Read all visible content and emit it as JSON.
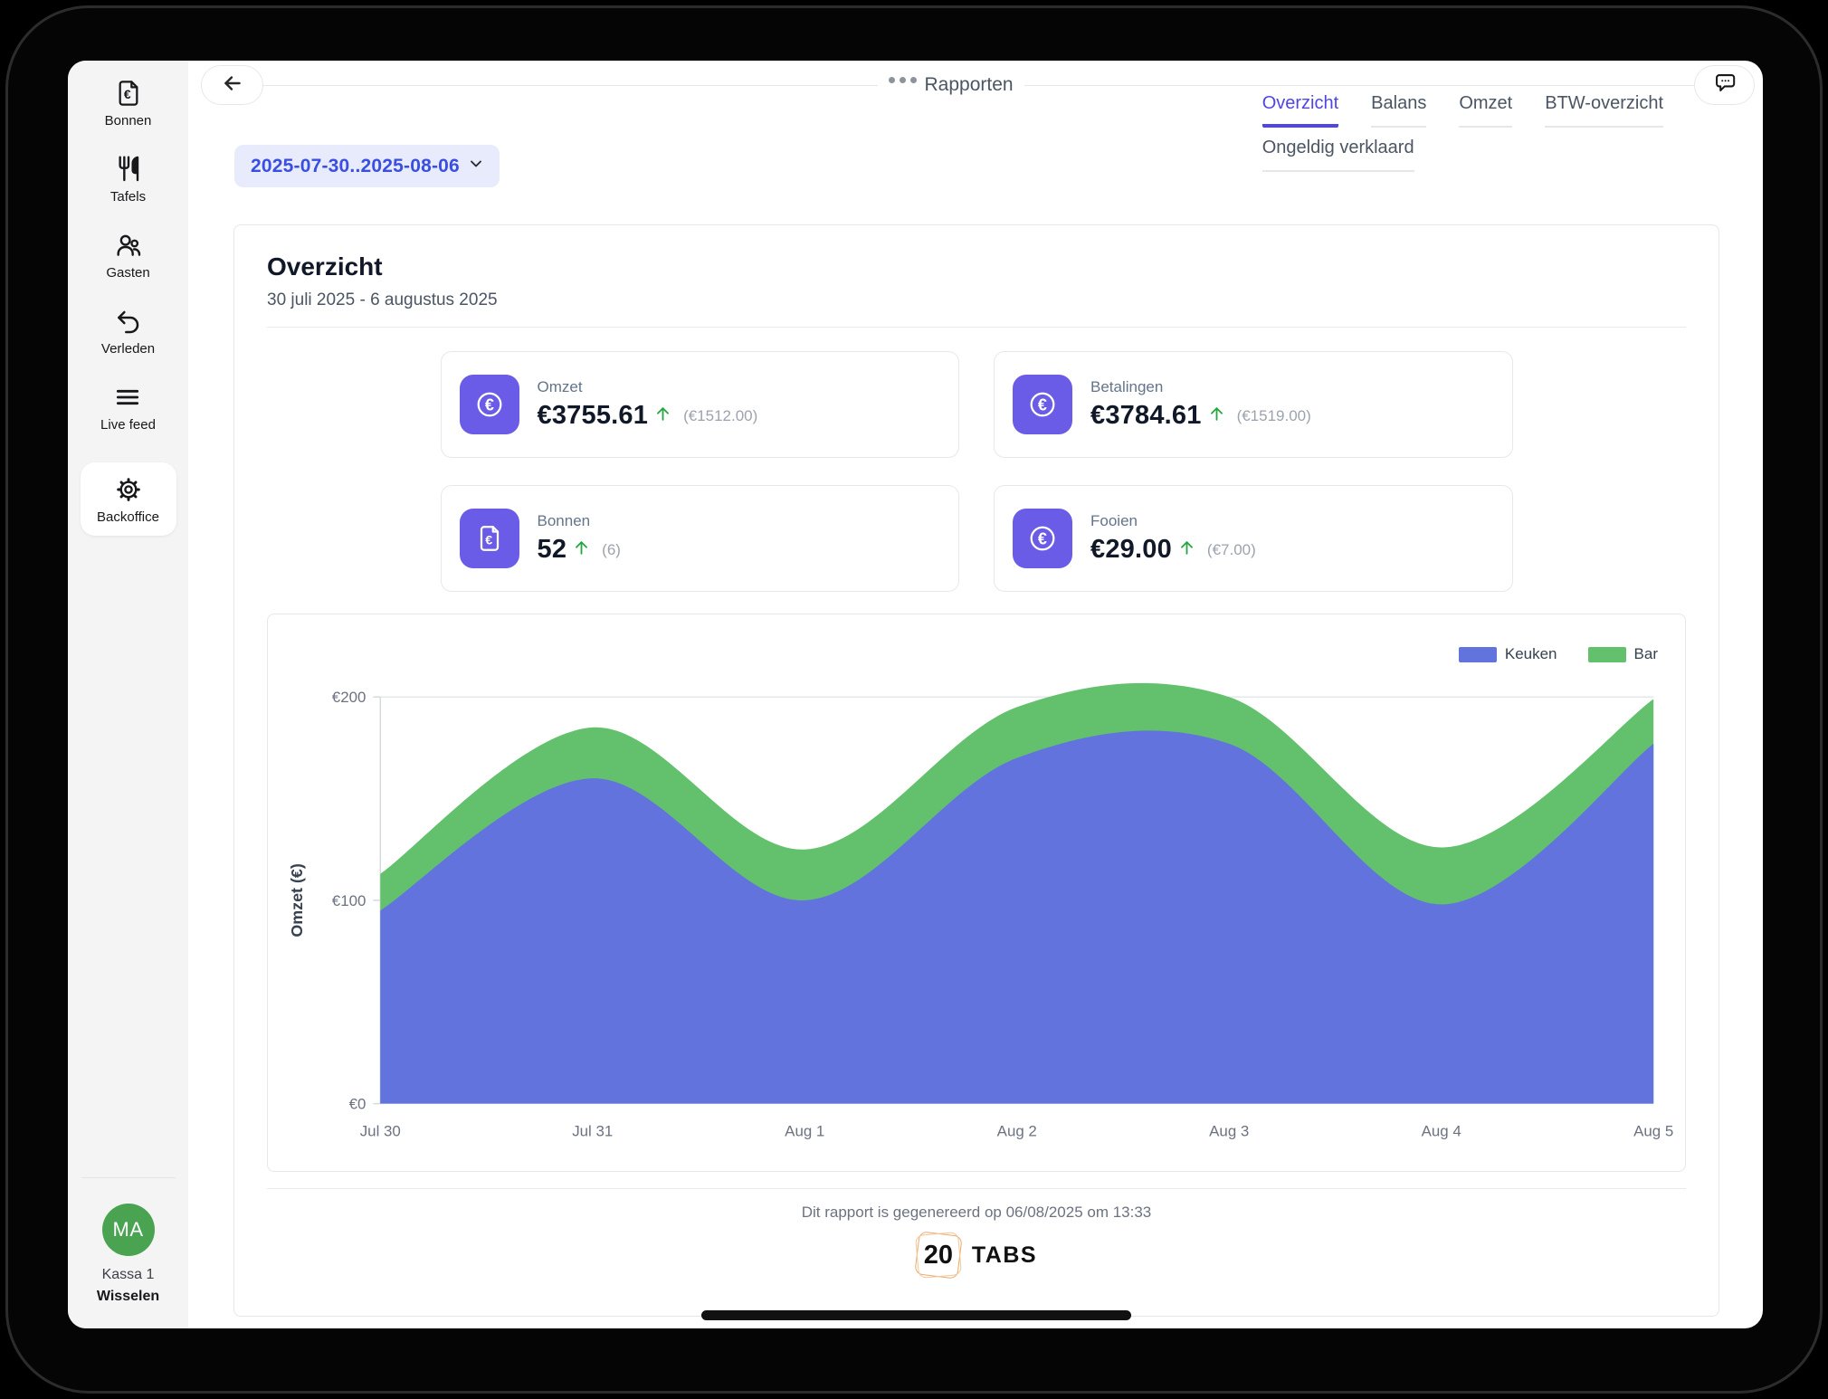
{
  "header": {
    "title": "Rapporten"
  },
  "filters": {
    "date_range": "2025-07-30..2025-08-06"
  },
  "tabs": {
    "row1": [
      {
        "label": "Overzicht",
        "active": true
      },
      {
        "label": "Balans",
        "active": false
      },
      {
        "label": "Omzet",
        "active": false
      },
      {
        "label": "BTW-overzicht",
        "active": false
      }
    ],
    "row2": [
      {
        "label": "Ongeldig verklaard",
        "active": false
      }
    ]
  },
  "sidebar": {
    "items": [
      {
        "label": "Bonnen",
        "icon": "receipt-euro-icon",
        "active": false
      },
      {
        "label": "Tafels",
        "icon": "utensils-icon",
        "active": false
      },
      {
        "label": "Gasten",
        "icon": "guests-icon",
        "active": false
      },
      {
        "label": "Verleden",
        "icon": "history-undo-icon",
        "active": false
      },
      {
        "label": "Live feed",
        "icon": "live-feed-icon",
        "active": false
      },
      {
        "label": "Backoffice",
        "icon": "gear-icon",
        "active": true
      }
    ],
    "user": {
      "initials": "MA",
      "name": "Kassa 1",
      "action": "Wisselen",
      "avatar_color": "#4aa351"
    }
  },
  "report": {
    "title": "Overzicht",
    "subtitle": "30 juli 2025 - 6 augustus 2025",
    "stats": [
      {
        "label": "Omzet",
        "value": "€3755.61",
        "delta": "(€1512.00)",
        "icon": "euro-circle-icon",
        "trend": "up"
      },
      {
        "label": "Betalingen",
        "value": "€3784.61",
        "delta": "(€1519.00)",
        "icon": "euro-circle-icon",
        "trend": "up"
      },
      {
        "label": "Bonnen",
        "value": "52",
        "delta": "(6)",
        "icon": "receipt-euro-icon",
        "trend": "up"
      },
      {
        "label": "Fooien",
        "value": "€29.00",
        "delta": "(€7.00)",
        "icon": "euro-circle-icon",
        "trend": "up"
      }
    ],
    "generated_text": "Dit rapport is gegenereerd op 06/08/2025 om 13:33",
    "logo": {
      "number": "20",
      "text": "TABS"
    }
  },
  "chart_data": {
    "type": "area",
    "stacked": true,
    "x": [
      "Jul 30",
      "Jul 31",
      "Aug 1",
      "Aug 2",
      "Aug 3",
      "Aug 4",
      "Aug 5"
    ],
    "series": [
      {
        "name": "Keuken",
        "color": "#6273dd",
        "values": [
          95,
          160,
          100,
          170,
          177,
          98,
          177
        ]
      },
      {
        "name": "Bar",
        "color": "#63c16e",
        "values": [
          18,
          25,
          25,
          25,
          23,
          28,
          22
        ]
      }
    ],
    "title": "",
    "xlabel": "",
    "ylabel": "Omzet (€)",
    "ylim": [
      0,
      200
    ],
    "yticks": [
      0,
      100,
      200
    ],
    "ytick_labels": [
      "€0",
      "€100",
      "€200"
    ],
    "grid": "top-line-only",
    "legend_position": "top-right",
    "colors": {
      "accent": "#4f46e5",
      "trend_up": "#27a544",
      "tile_icon_bg": "#6b5ce7"
    }
  }
}
